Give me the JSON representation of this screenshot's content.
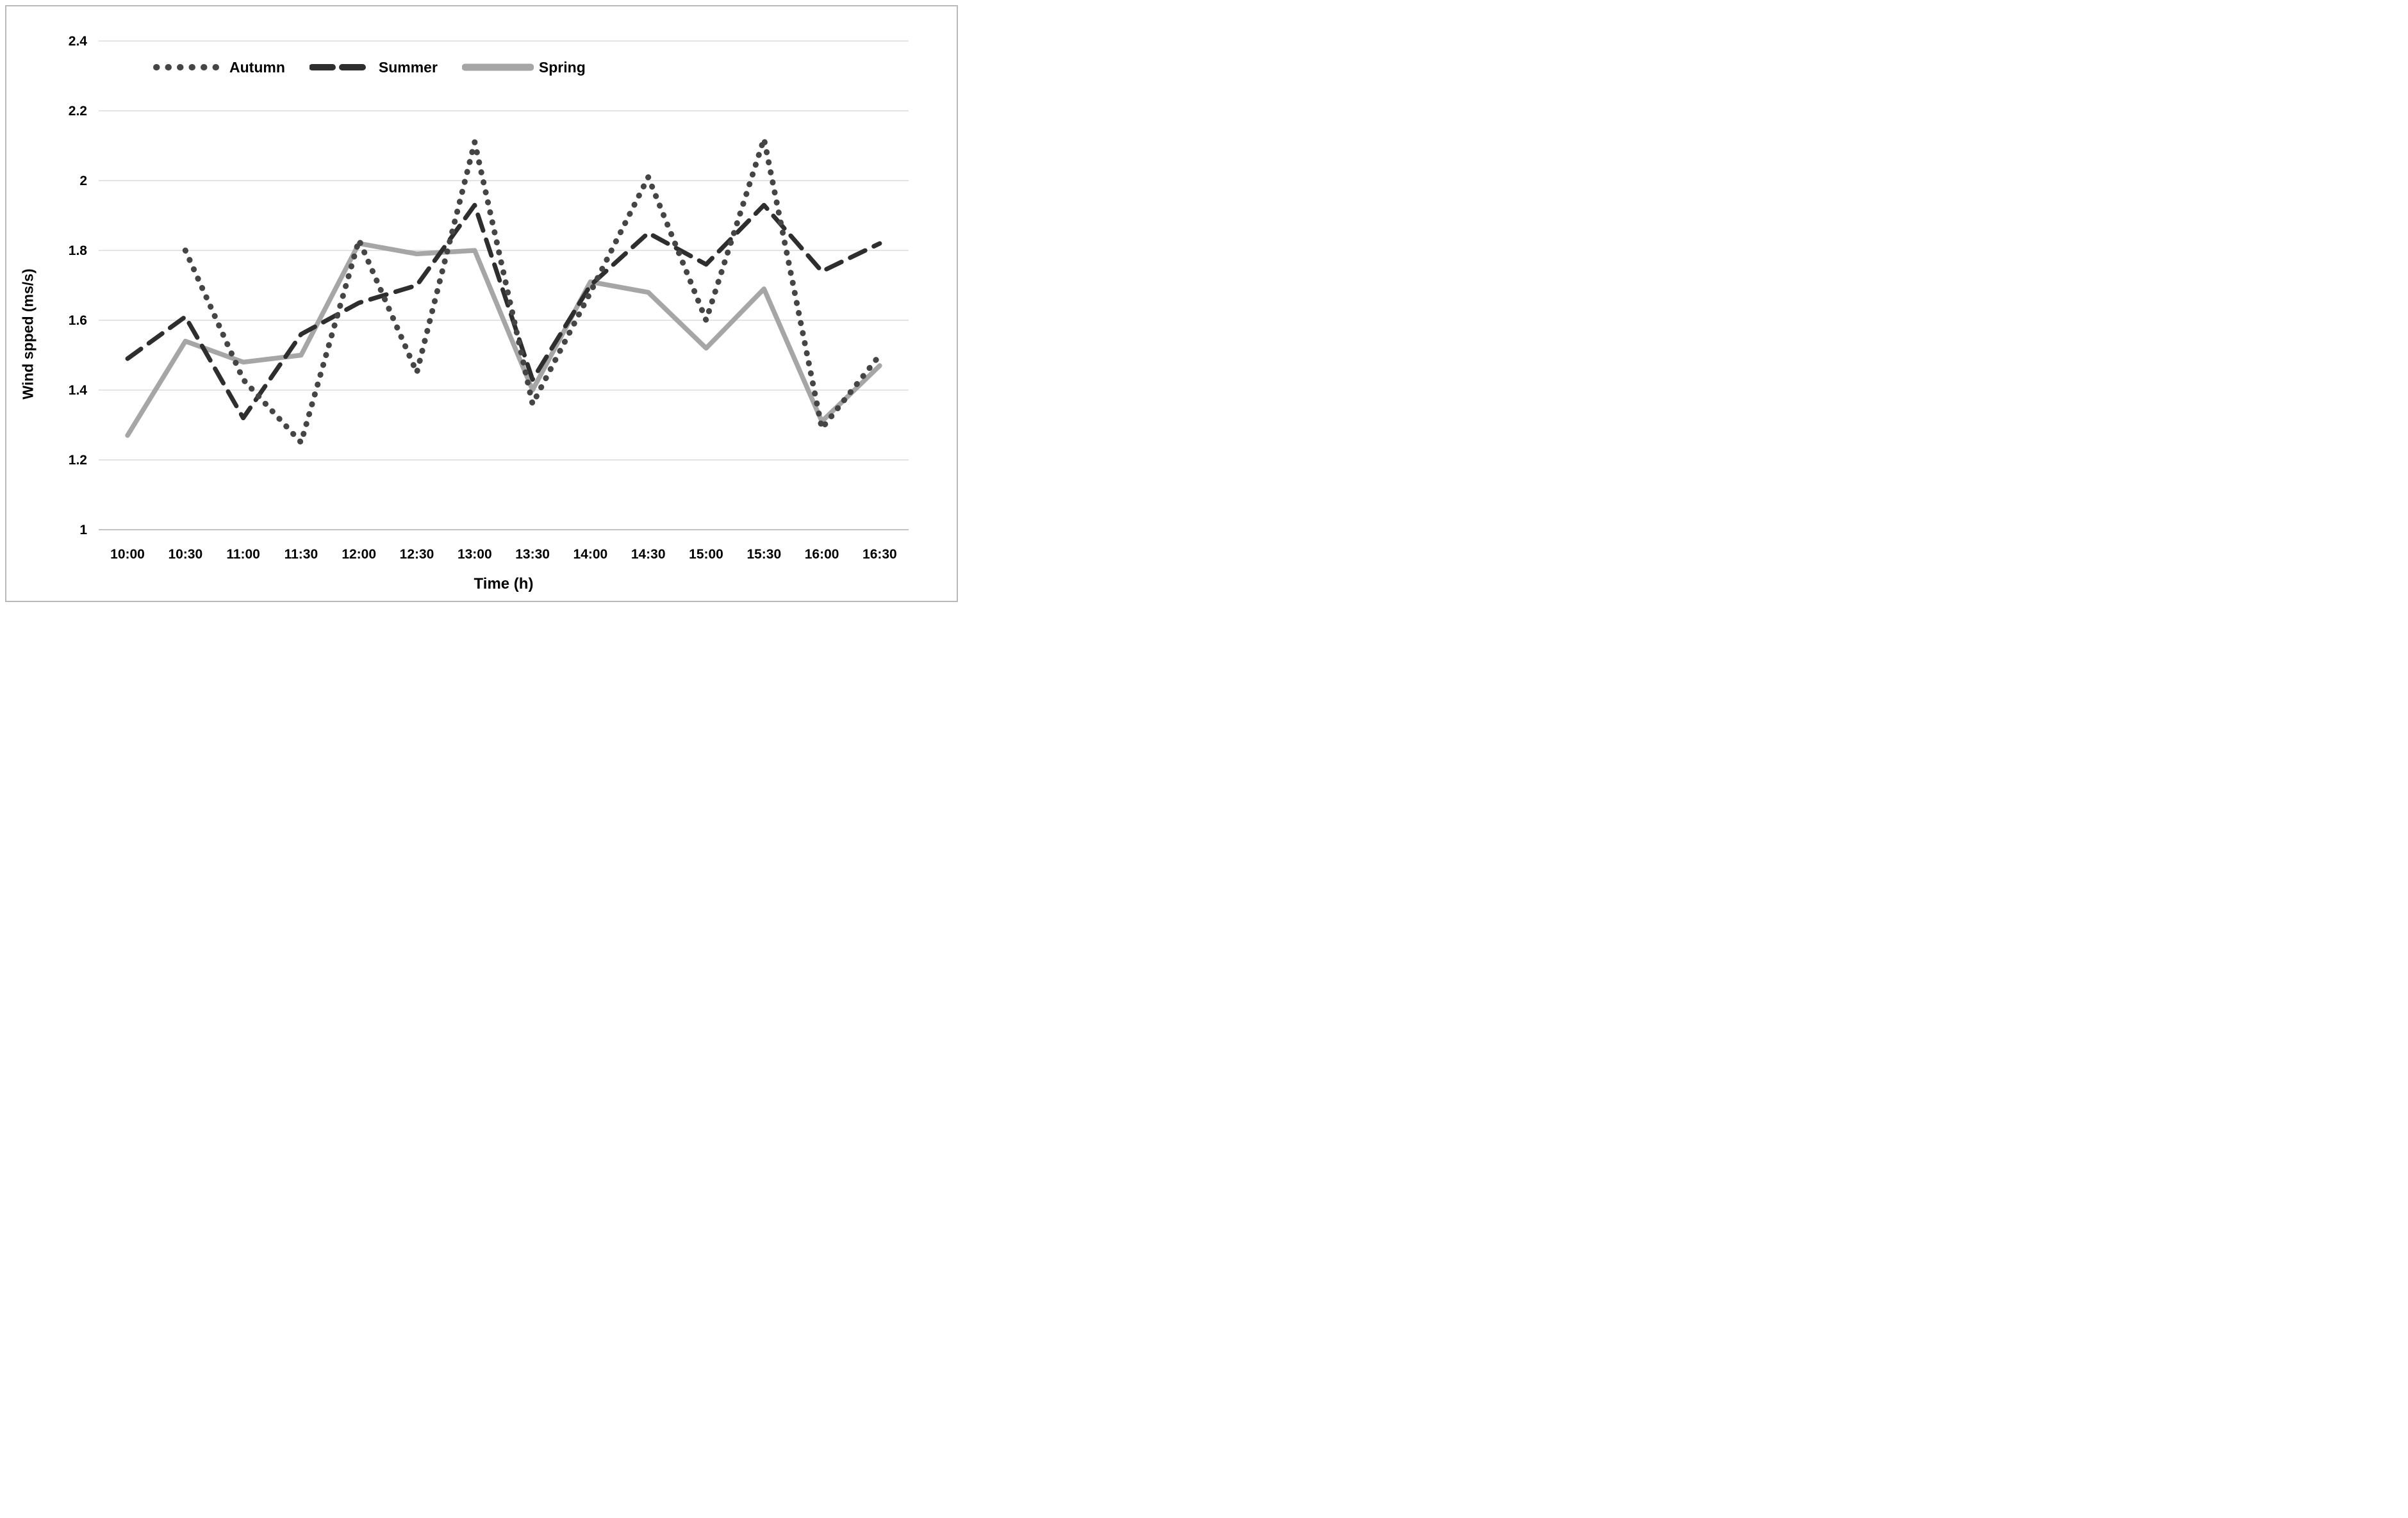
{
  "figure": {
    "y_axis_title": "Wind spped (ms/s)",
    "x_axis_title": "Time (h)"
  },
  "legend": {
    "items": [
      {
        "label": "Autumn"
      },
      {
        "label": "Summer"
      },
      {
        "label": "Spring"
      }
    ]
  },
  "chart_data": {
    "type": "line",
    "title": "",
    "xlabel": "Time (h)",
    "ylabel": "Wind spped (ms/s)",
    "categories": [
      "10:00",
      "10:30",
      "11:00",
      "11:30",
      "12:00",
      "12:30",
      "13:00",
      "13:30",
      "14:00",
      "14:30",
      "15:00",
      "15:30",
      "16:00",
      "16:30"
    ],
    "y_ticks": [
      "1",
      "1.2",
      "1.4",
      "1.6",
      "1.8",
      "2",
      "2.2",
      "2.4"
    ],
    "ylim": [
      1.0,
      2.4
    ],
    "grid": "horizontal",
    "gridline_color": "#dcdcdc",
    "axisline_color": "#c4c4c4",
    "legend_position": "top-left-inside",
    "series": [
      {
        "name": "Autumn",
        "style": "dotted",
        "color": "#454545",
        "values": [
          null,
          1.8,
          1.43,
          1.25,
          1.83,
          1.45,
          2.11,
          1.36,
          1.68,
          2.01,
          1.6,
          2.12,
          1.29,
          1.5
        ]
      },
      {
        "name": "Summer",
        "style": "dashed",
        "color": "#2e2e2e",
        "values": [
          1.49,
          1.61,
          1.32,
          1.56,
          1.65,
          1.7,
          1.93,
          1.43,
          1.7,
          1.85,
          1.76,
          1.93,
          1.74,
          1.82
        ]
      },
      {
        "name": "Spring",
        "style": "solid",
        "color": "#a6a6a6",
        "values": [
          1.27,
          1.54,
          1.48,
          1.5,
          1.82,
          1.79,
          1.8,
          1.4,
          1.71,
          1.68,
          1.52,
          1.69,
          1.31,
          1.47
        ]
      }
    ]
  }
}
